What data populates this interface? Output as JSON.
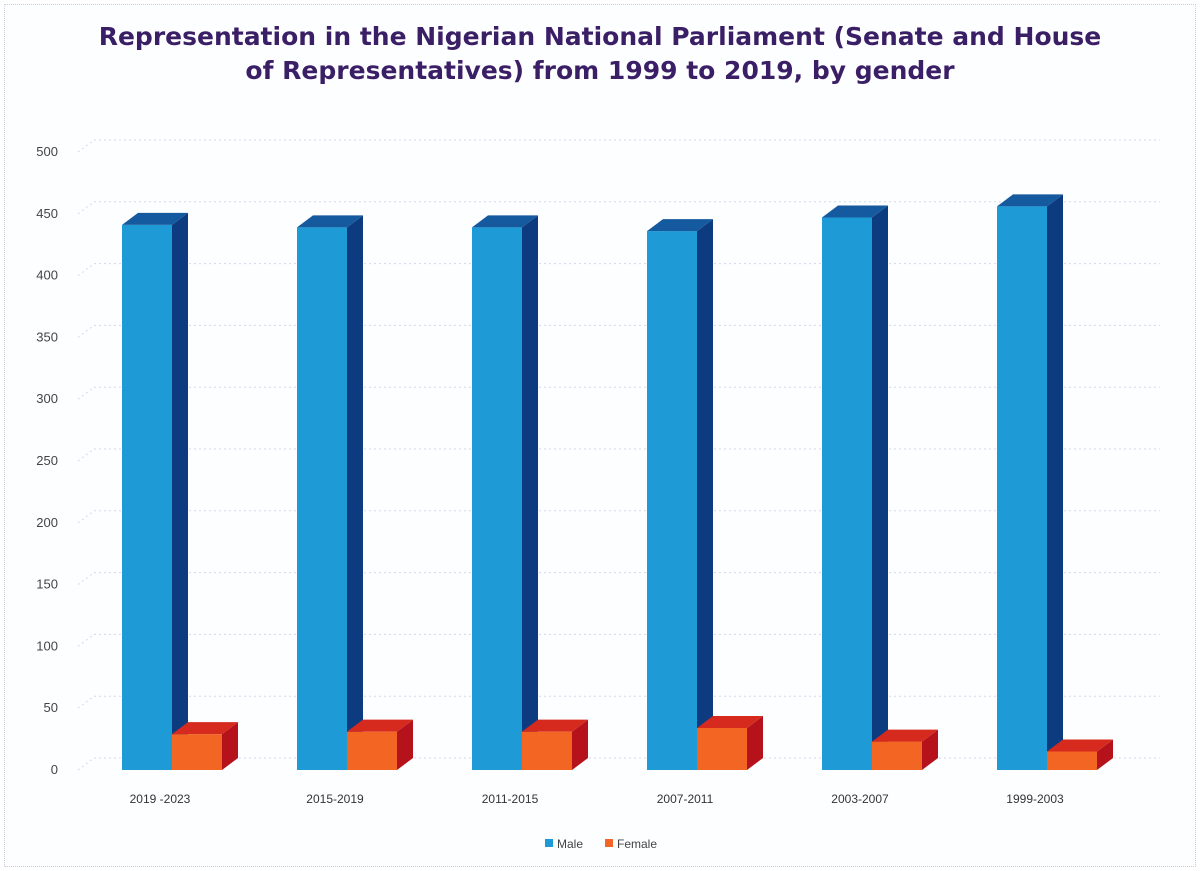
{
  "chart_data": {
    "type": "bar",
    "title_line1": "Representation in the Nigerian National Parliament (Senate and House",
    "title_line2": "of Representatives) from 1999 to 2019, by gender",
    "categories": [
      "2019 -2023",
      "2015-2019",
      "2011-2015",
      "2007-2011",
      "2003-2007",
      "1999-2003"
    ],
    "series": [
      {
        "name": "Male",
        "values": [
          441,
          439,
          439,
          436,
          447,
          456
        ],
        "color": "#1e9ad6",
        "side_color": "#0d3b80",
        "top_color": "#155a9e"
      },
      {
        "name": "Female",
        "values": [
          29,
          31,
          31,
          34,
          23,
          15
        ],
        "color": "#f26522",
        "side_color": "#b5121b",
        "top_color": "#d62a1e"
      }
    ],
    "yticks": [
      0,
      50,
      100,
      150,
      200,
      250,
      300,
      350,
      400,
      450,
      500
    ],
    "ylim": [
      0,
      500
    ],
    "xlabel": "",
    "ylabel": "",
    "grid": true,
    "legend_position": "bottom-center",
    "three_d": true
  }
}
